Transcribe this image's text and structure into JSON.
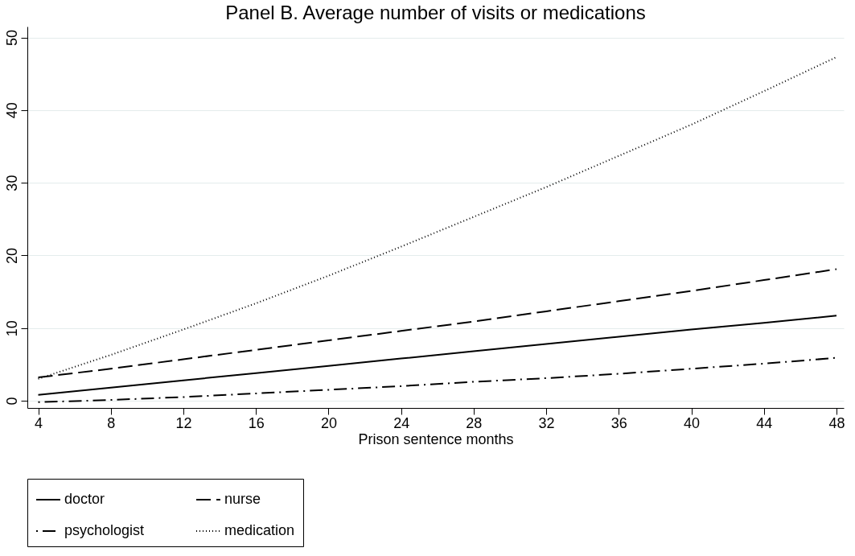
{
  "chart_data": {
    "type": "line",
    "title": "Panel B. Average number of visits or medications",
    "xlabel": "Prison sentence months",
    "x": [
      4,
      8,
      12,
      16,
      20,
      24,
      28,
      32,
      36,
      40,
      44,
      48
    ],
    "series": [
      {
        "name": "doctor",
        "color": "#000000",
        "line_style": "solid",
        "values": [
          0.8,
          1.8,
          2.8,
          3.8,
          4.8,
          5.8,
          6.8,
          7.8,
          8.8,
          9.8,
          10.7,
          11.7
        ]
      },
      {
        "name": "nurse",
        "color": "#000000",
        "line_style": "dashed",
        "values": [
          3.2,
          4.4,
          5.7,
          7.0,
          8.3,
          9.6,
          10.9,
          12.3,
          13.7,
          15.1,
          16.6,
          18.1
        ]
      },
      {
        "name": "psychologist",
        "color": "#000000",
        "line_style": "dashdot",
        "values": [
          -0.2,
          0.1,
          0.5,
          1.0,
          1.5,
          2.0,
          2.6,
          3.1,
          3.7,
          4.4,
          5.1,
          5.9
        ]
      },
      {
        "name": "medication",
        "color": "#000000",
        "line_style": "dotted",
        "values": [
          3.0,
          6.3,
          9.8,
          13.4,
          17.2,
          21.2,
          25.3,
          29.4,
          33.7,
          38.0,
          42.6,
          47.3
        ]
      }
    ],
    "xlim": [
      3.4,
      48.4
    ],
    "xticks": [
      4,
      8,
      12,
      16,
      20,
      24,
      28,
      32,
      36,
      40,
      44,
      48
    ],
    "ylim": [
      -1,
      51.5
    ],
    "yticks": [
      0,
      10,
      20,
      30,
      40,
      50
    ],
    "grid": "y",
    "legend": "bottom"
  }
}
